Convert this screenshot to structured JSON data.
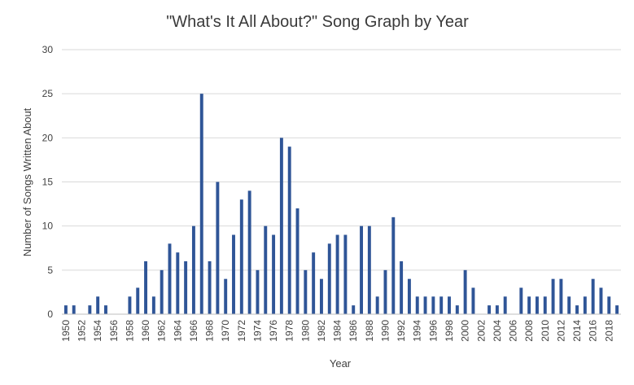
{
  "chart_data": {
    "type": "bar",
    "title": "\"What's It All About?\" Song Graph by Year",
    "xlabel": "Year",
    "ylabel": "Number of Songs Written About",
    "ylim": [
      0,
      30
    ],
    "yticks": [
      0,
      5,
      10,
      15,
      20,
      25,
      30
    ],
    "grid": true,
    "legend": "none",
    "bar_color": "#2F5597",
    "categories": [
      1950,
      1951,
      1952,
      1953,
      1954,
      1955,
      1956,
      1957,
      1958,
      1959,
      1960,
      1961,
      1962,
      1963,
      1964,
      1965,
      1966,
      1967,
      1968,
      1969,
      1970,
      1971,
      1972,
      1973,
      1974,
      1975,
      1976,
      1977,
      1978,
      1979,
      1980,
      1981,
      1982,
      1983,
      1984,
      1985,
      1986,
      1987,
      1988,
      1989,
      1990,
      1991,
      1992,
      1993,
      1994,
      1995,
      1996,
      1997,
      1998,
      1999,
      2000,
      2001,
      2002,
      2003,
      2004,
      2005,
      2006,
      2007,
      2008,
      2009,
      2010,
      2011,
      2012,
      2013,
      2014,
      2015,
      2016,
      2017,
      2018,
      2019
    ],
    "tick_labels": [
      "1950",
      "1952",
      "1954",
      "1956",
      "1958",
      "1960",
      "1962",
      "1964",
      "1966",
      "1968",
      "1970",
      "1972",
      "1974",
      "1976",
      "1978",
      "1980",
      "1982",
      "1984",
      "1986",
      "1988",
      "1990",
      "1992",
      "1994",
      "1996",
      "1998",
      "2000",
      "2002",
      "2004",
      "2006",
      "2008",
      "2010",
      "2012",
      "2014",
      "2016",
      "2018"
    ],
    "values": [
      1,
      1,
      0,
      1,
      2,
      1,
      0,
      0,
      2,
      3,
      6,
      2,
      5,
      8,
      7,
      6,
      10,
      25,
      6,
      15,
      4,
      9,
      13,
      14,
      5,
      10,
      9,
      20,
      19,
      12,
      5,
      7,
      4,
      8,
      9,
      9,
      1,
      10,
      10,
      2,
      5,
      11,
      6,
      4,
      2,
      2,
      2,
      2,
      2,
      1,
      5,
      3,
      0,
      1,
      1,
      2,
      0,
      3,
      2,
      2,
      2,
      4,
      4,
      2,
      1,
      2,
      4,
      3,
      2,
      1
    ]
  }
}
